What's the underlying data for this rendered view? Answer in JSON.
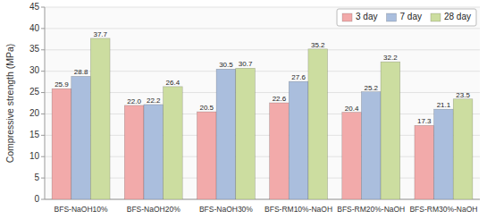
{
  "chart_data": {
    "type": "bar",
    "y_label": "Compressive strength (MPa)",
    "categories": [
      "BFS-NaOH10%",
      "BFS-NaOH20%",
      "BFS-NaOH30%",
      "BFS-RM10%-NaOH",
      "BFS-RM20%-NaOH",
      "BFS-RM30%-NaOH"
    ],
    "series": [
      {
        "name": "3 day",
        "color": "#f2aaaa",
        "values": [
          25.9,
          22.0,
          20.5,
          22.6,
          20.4,
          17.3
        ],
        "value_labels": [
          "25.9",
          "22.0",
          "20.5",
          "22.6",
          "20.4",
          "17.3"
        ]
      },
      {
        "name": "7 day",
        "color": "#aabedd",
        "values": [
          28.8,
          22.2,
          30.5,
          27.6,
          25.2,
          21.1
        ],
        "value_labels": [
          "28.8",
          "22.2",
          "30.5",
          "27.6",
          "25.2",
          "21.1"
        ]
      },
      {
        "name": "28 day",
        "color": "#ccdda0",
        "values": [
          37.7,
          26.4,
          30.7,
          35.2,
          32.2,
          23.5
        ],
        "value_labels": [
          "37.7",
          "26.4",
          "30.7",
          "35.2",
          "32.2",
          "23.5"
        ]
      }
    ],
    "ylim": [
      0,
      45
    ],
    "yticks": [
      0,
      5,
      10,
      15,
      20,
      25,
      30,
      35,
      40,
      45
    ],
    "grid": true,
    "legend": "upper right",
    "data_labels": true
  }
}
